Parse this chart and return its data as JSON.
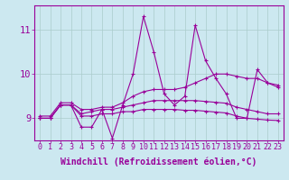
{
  "x_values": [
    0,
    1,
    2,
    3,
    4,
    5,
    6,
    7,
    8,
    9,
    10,
    11,
    12,
    13,
    14,
    15,
    16,
    17,
    18,
    19,
    20,
    21,
    22,
    23
  ],
  "line1": [
    9.0,
    9.0,
    9.3,
    9.3,
    8.8,
    8.8,
    9.2,
    8.55,
    9.3,
    10.0,
    11.3,
    10.5,
    9.55,
    9.3,
    9.5,
    11.1,
    10.3,
    9.9,
    9.55,
    9.0,
    9.0,
    10.1,
    9.8,
    9.7
  ],
  "line2": [
    9.05,
    9.05,
    9.35,
    9.35,
    9.2,
    9.2,
    9.25,
    9.25,
    9.35,
    9.5,
    9.6,
    9.65,
    9.65,
    9.65,
    9.7,
    9.8,
    9.9,
    10.0,
    10.0,
    9.95,
    9.9,
    9.9,
    9.8,
    9.75
  ],
  "line3": [
    9.0,
    9.0,
    9.3,
    9.3,
    9.1,
    9.15,
    9.2,
    9.2,
    9.25,
    9.3,
    9.35,
    9.4,
    9.4,
    9.4,
    9.4,
    9.4,
    9.38,
    9.36,
    9.34,
    9.25,
    9.2,
    9.15,
    9.1,
    9.1
  ],
  "line4": [
    9.0,
    9.0,
    9.3,
    9.3,
    9.05,
    9.05,
    9.1,
    9.1,
    9.15,
    9.15,
    9.2,
    9.2,
    9.2,
    9.2,
    9.18,
    9.18,
    9.16,
    9.14,
    9.12,
    9.05,
    9.0,
    8.98,
    8.96,
    8.95
  ],
  "line_color": "#990099",
  "bg_color": "#cce8f0",
  "grid_color": "#aacccc",
  "ylim": [
    8.5,
    11.55
  ],
  "yticks": [
    9,
    10,
    11
  ],
  "xlim": [
    -0.5,
    23.5
  ],
  "xlabel": "Windchill (Refroidissement éolien,°C)",
  "xlabel_fontsize": 7,
  "tick_fontsize": 6
}
